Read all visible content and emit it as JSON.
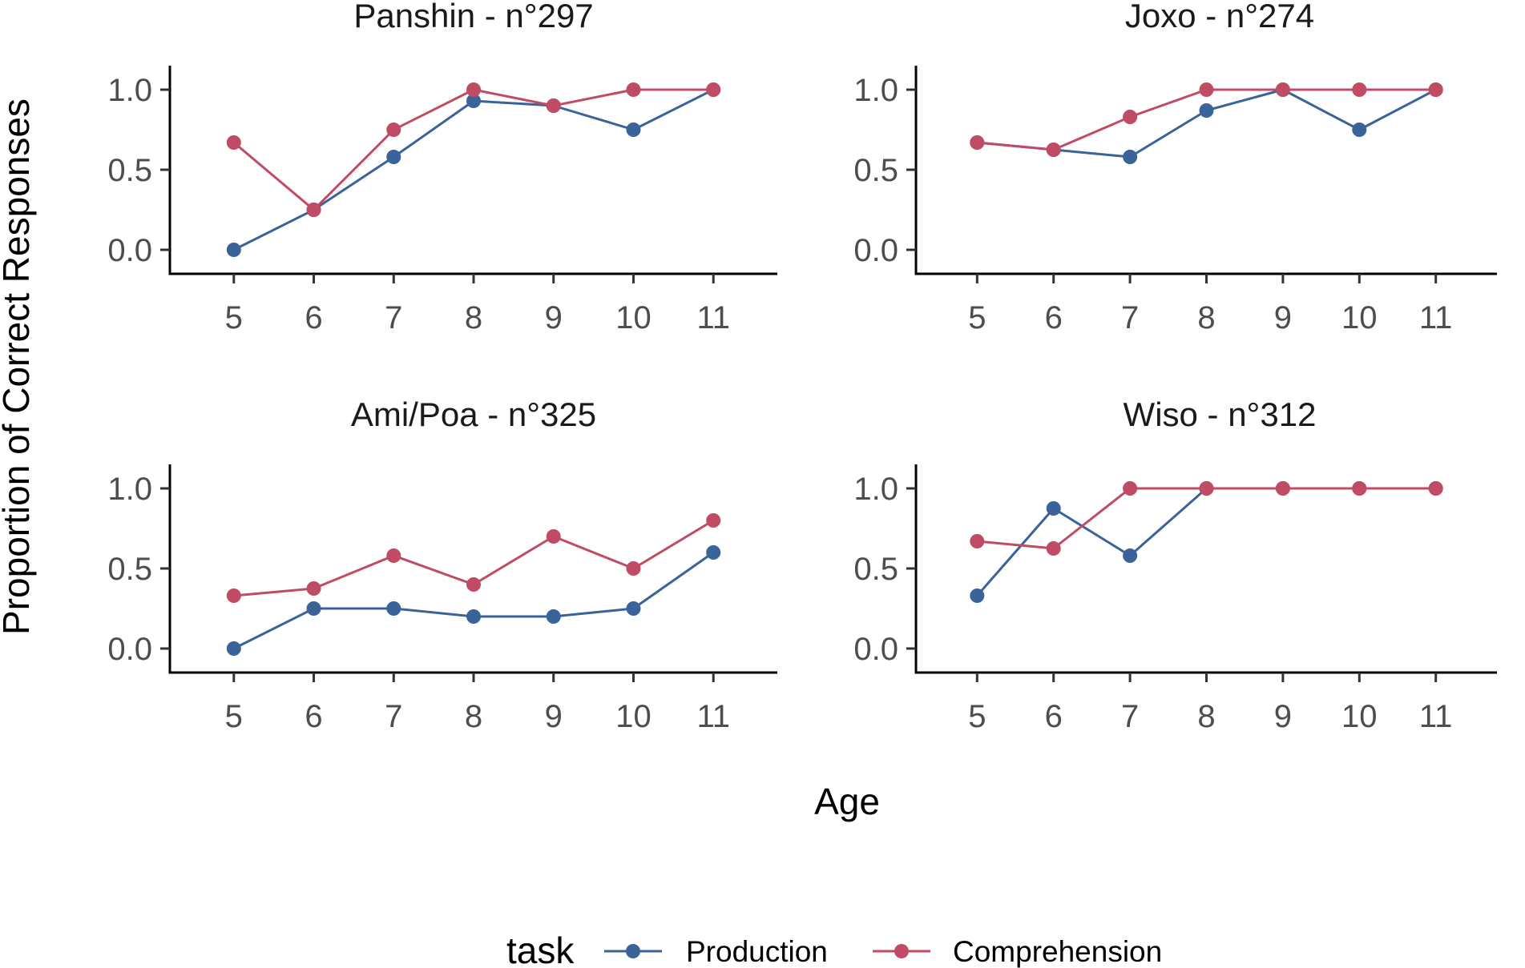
{
  "chart_data": {
    "type": "line",
    "ylabel": "Proportion of Correct Responses",
    "xlabel": "Age",
    "x": [
      5,
      6,
      7,
      8,
      9,
      10,
      11
    ],
    "x_ticks": [
      "5",
      "6",
      "7",
      "8",
      "9",
      "10",
      "11"
    ],
    "y_ticks": [
      "0.0",
      "0.5",
      "1.0"
    ],
    "ylim": [
      -0.15,
      1.15
    ],
    "xlim": [
      4.2,
      11.8
    ],
    "grid": false,
    "legend": {
      "title": "task",
      "position": "bottom",
      "entries": [
        "Production",
        "Comprehension"
      ]
    },
    "colors": {
      "Production": "#3a6399",
      "Comprehension": "#c04b64"
    },
    "panels": [
      {
        "title": "Panshin - n°297",
        "series": [
          {
            "name": "Production",
            "values": [
              0.0,
              0.25,
              0.58,
              0.93,
              0.9,
              0.75,
              1.0
            ]
          },
          {
            "name": "Comprehension",
            "values": [
              0.67,
              0.25,
              0.75,
              1.0,
              0.9,
              1.0,
              1.0
            ]
          }
        ]
      },
      {
        "title": "Joxo - n°274",
        "series": [
          {
            "name": "Production",
            "values": [
              0.67,
              0.625,
              0.58,
              0.87,
              1.0,
              0.75,
              1.0
            ]
          },
          {
            "name": "Comprehension",
            "values": [
              0.67,
              0.625,
              0.83,
              1.0,
              1.0,
              1.0,
              1.0
            ]
          }
        ]
      },
      {
        "title": "Ami/Poa - n°325",
        "series": [
          {
            "name": "Production",
            "values": [
              0.0,
              0.25,
              0.25,
              0.2,
              0.2,
              0.25,
              0.6
            ]
          },
          {
            "name": "Comprehension",
            "values": [
              0.33,
              0.375,
              0.58,
              0.4,
              0.7,
              0.5,
              0.8
            ]
          }
        ]
      },
      {
        "title": "Wiso - n°312",
        "series": [
          {
            "name": "Production",
            "values": [
              0.33,
              0.875,
              0.58,
              1.0,
              1.0,
              1.0,
              1.0
            ]
          },
          {
            "name": "Comprehension",
            "values": [
              0.67,
              0.625,
              1.0,
              1.0,
              1.0,
              1.0,
              1.0
            ]
          }
        ]
      }
    ]
  }
}
